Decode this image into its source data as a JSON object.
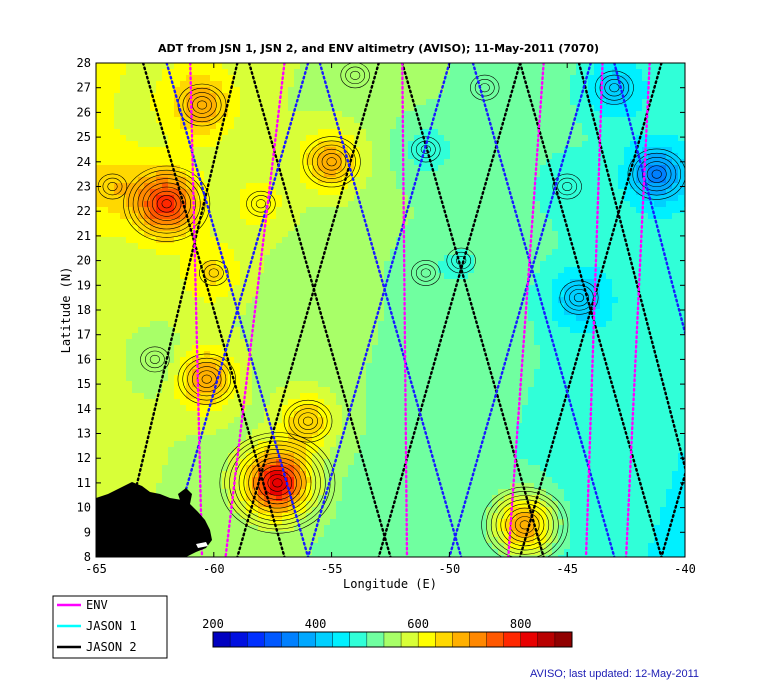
{
  "chart_data": {
    "type": "heatmap",
    "title": "ADT from JSN 1, JSN 2, and ENV altimetry (AVISO); 11-May-2011 (7070)",
    "xlabel": "Longitude (E)",
    "ylabel": "Latitude (N)",
    "xlim": [
      -65,
      -40
    ],
    "ylim": [
      8,
      28
    ],
    "x_ticks": [
      -65,
      -60,
      -55,
      -50,
      -45,
      -40
    ],
    "x_tick_labels": [
      "-65",
      "-60",
      "-55",
      "-50",
      "-45",
      "-40"
    ],
    "y_ticks": [
      8,
      9,
      10,
      11,
      12,
      13,
      14,
      15,
      16,
      17,
      18,
      19,
      20,
      21,
      22,
      23,
      24,
      25,
      26,
      27,
      28
    ],
    "colorbar": {
      "min": 200,
      "max": 900,
      "tick_values": [
        200,
        400,
        600,
        800
      ],
      "tick_labels": [
        "200",
        "400",
        "600",
        "800"
      ],
      "colors": [
        "#0000c0",
        "#0010e0",
        "#0030ff",
        "#0058ff",
        "#0080ff",
        "#00a8ff",
        "#00d0ff",
        "#00f0ff",
        "#30ffd8",
        "#70ffa0",
        "#a8ff68",
        "#d8ff38",
        "#ffff00",
        "#ffd800",
        "#ffb000",
        "#ff8800",
        "#ff5800",
        "#ff2800",
        "#e80000",
        "#b80000",
        "#900000"
      ]
    },
    "field_hotspots": [
      {
        "lon": -62.0,
        "lat": 22.3,
        "value": 790
      },
      {
        "lon": -57.3,
        "lat": 11.0,
        "value": 830
      },
      {
        "lon": -60.5,
        "lat": 26.3,
        "value": 700
      },
      {
        "lon": -55.0,
        "lat": 24.0,
        "value": 690
      },
      {
        "lon": -60.3,
        "lat": 15.2,
        "value": 700
      },
      {
        "lon": -56.0,
        "lat": 13.5,
        "value": 660
      },
      {
        "lon": -60.0,
        "lat": 19.5,
        "value": 640
      },
      {
        "lon": -64.3,
        "lat": 23.0,
        "value": 660
      },
      {
        "lon": -46.8,
        "lat": 9.3,
        "value": 700
      },
      {
        "lon": -58.0,
        "lat": 22.3,
        "value": 620
      },
      {
        "lon": -43.0,
        "lat": 27.0,
        "value": 410
      },
      {
        "lon": -41.2,
        "lat": 23.5,
        "value": 350
      },
      {
        "lon": -44.5,
        "lat": 18.5,
        "value": 400
      },
      {
        "lon": -45.0,
        "lat": 23.0,
        "value": 470
      },
      {
        "lon": -51.0,
        "lat": 24.5,
        "value": 480
      },
      {
        "lon": -49.5,
        "lat": 20.0,
        "value": 500
      },
      {
        "lon": -51.0,
        "lat": 19.5,
        "value": 510
      },
      {
        "lon": -62.5,
        "lat": 16.0,
        "value": 530
      },
      {
        "lon": -48.5,
        "lat": 27.0,
        "value": 510
      },
      {
        "lon": -54.0,
        "lat": 27.5,
        "value": 560
      }
    ],
    "legend": {
      "placement": "bottom-left",
      "entries": [
        {
          "name": "ENV",
          "color": "#ff00ff"
        },
        {
          "name": "JASON 1",
          "color": "#00ffff"
        },
        {
          "name": "JASON 2",
          "color": "#000000"
        }
      ]
    },
    "grid": false
  },
  "footer_text": "AVISO; last updated: 12-May-2011"
}
